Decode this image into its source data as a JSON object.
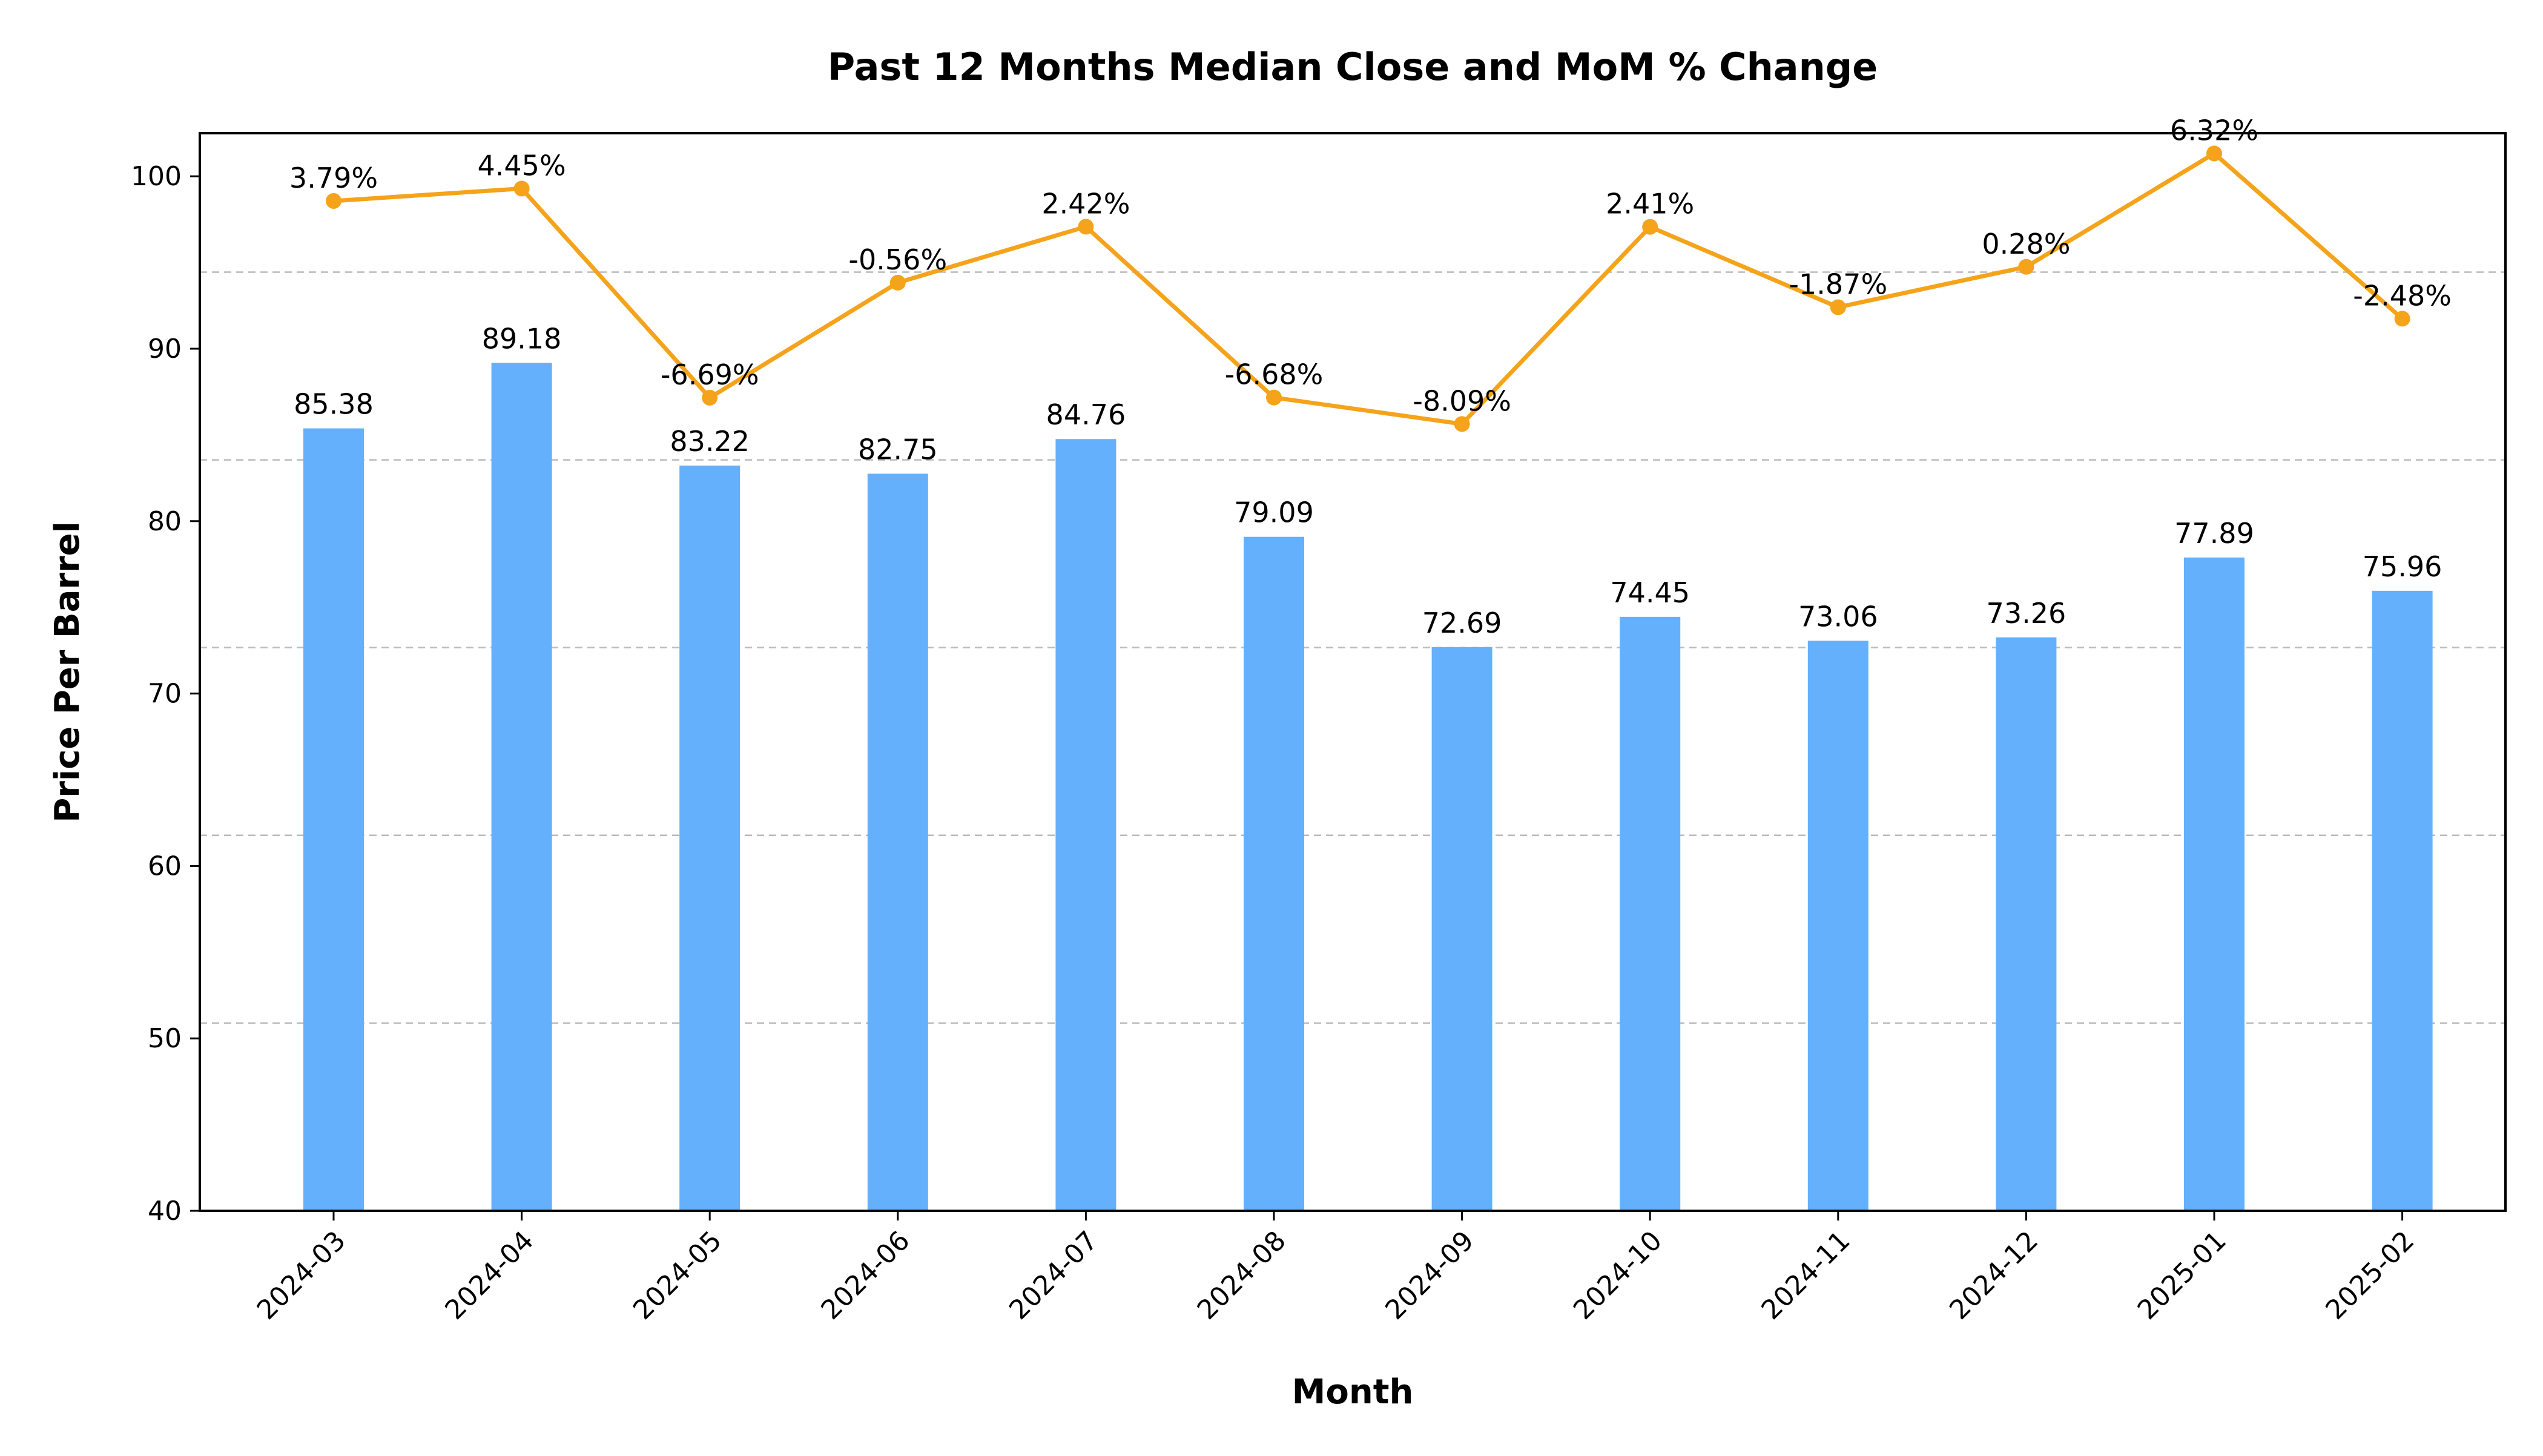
{
  "chart_data": {
    "type": "bar",
    "title": "Past 12 Months Median Close and MoM % Change",
    "xlabel": "Month",
    "ylabel": "Price Per Barrel",
    "ylim": [
      40,
      102.5
    ],
    "yticks": [
      40,
      50,
      60,
      70,
      80,
      90,
      100
    ],
    "categories": [
      "2024-03",
      "2024-04",
      "2024-05",
      "2024-06",
      "2024-07",
      "2024-08",
      "2024-09",
      "2024-10",
      "2024-11",
      "2024-12",
      "2025-01",
      "2025-02"
    ],
    "series": [
      {
        "type": "bar",
        "color": "#64b0fc",
        "values": [
          85.38,
          89.18,
          83.22,
          82.75,
          84.76,
          79.09,
          72.69,
          74.45,
          73.06,
          73.26,
          77.89,
          75.96
        ],
        "labels": [
          "85.38",
          "89.18",
          "83.22",
          "82.75",
          "84.76",
          "79.09",
          "72.69",
          "74.45",
          "73.06",
          "73.26",
          "77.89",
          "75.96"
        ]
      },
      {
        "type": "line",
        "axis": "secondary",
        "color": "#f5a31a",
        "values": [
          3.79,
          4.45,
          -6.69,
          -0.56,
          2.42,
          -6.68,
          -8.09,
          2.41,
          -1.87,
          0.28,
          6.32,
          -2.48
        ],
        "labels": [
          "3.79%",
          "4.45%",
          "-6.69%",
          "-0.56%",
          "2.42%",
          "-6.68%",
          "-8.09%",
          "2.41%",
          "-1.87%",
          "0.28%",
          "6.32%",
          "-2.48%"
        ]
      }
    ],
    "secondary_ylim": [
      -50,
      7.4
    ],
    "grid": "secondary axis horizontal dashed"
  }
}
